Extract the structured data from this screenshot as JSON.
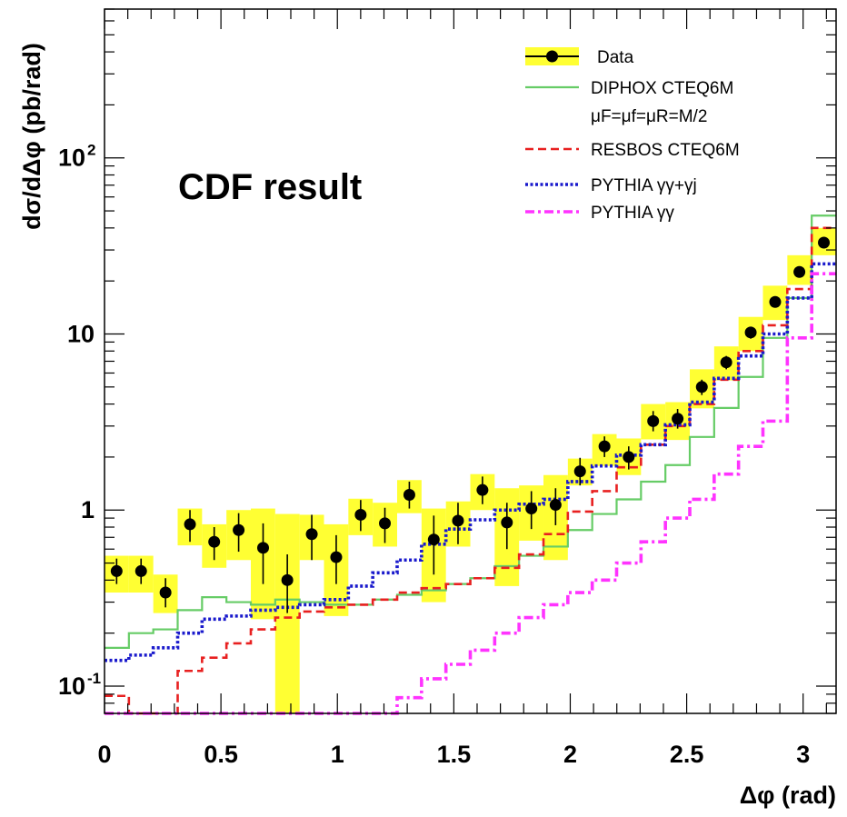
{
  "chart_data": {
    "type": "line",
    "title": "",
    "xlabel": "Δφ (rad)",
    "ylabel": "dσ/dΔφ (pb/rad)",
    "xlim": [
      0,
      3.1416
    ],
    "ylim": [
      0.07,
      700
    ],
    "yscale": "log",
    "grid": false,
    "legend_position": "top-right",
    "annotation": "CDF result",
    "x_ticks": [
      {
        "value": 0,
        "label": "0"
      },
      {
        "value": 0.5,
        "label": "0.5"
      },
      {
        "value": 1,
        "label": "1"
      },
      {
        "value": 1.5,
        "label": "1.5"
      },
      {
        "value": 2,
        "label": "2"
      },
      {
        "value": 2.5,
        "label": "2.5"
      },
      {
        "value": 3,
        "label": "3"
      }
    ],
    "y_ticks": [
      {
        "value": 0.1,
        "base": "10",
        "exp": "-1"
      },
      {
        "value": 1,
        "base": "1",
        "exp": ""
      },
      {
        "value": 10,
        "base": "10",
        "exp": ""
      },
      {
        "value": 100,
        "base": "10",
        "exp": "2"
      }
    ],
    "bin_edges": [
      0,
      0.1047,
      0.2094,
      0.3142,
      0.4189,
      0.5236,
      0.6283,
      0.733,
      0.8378,
      0.9425,
      1.0472,
      1.1519,
      1.2566,
      1.3614,
      1.4661,
      1.5708,
      1.6755,
      1.7802,
      1.885,
      1.9897,
      2.0944,
      2.1991,
      2.3038,
      2.4086,
      2.5133,
      2.618,
      2.7227,
      2.8274,
      2.9322,
      3.0369,
      3.1416
    ],
    "series": [
      {
        "name": "Data",
        "style": "points",
        "color": "#000000",
        "band_color": "#ffff33",
        "x": [
          0.052,
          0.157,
          0.262,
          0.367,
          0.471,
          0.576,
          0.681,
          0.785,
          0.89,
          0.995,
          1.1,
          1.204,
          1.309,
          1.414,
          1.518,
          1.623,
          1.728,
          1.833,
          1.937,
          2.042,
          2.147,
          2.251,
          2.356,
          2.461,
          2.565,
          2.67,
          2.775,
          2.88,
          2.984,
          3.089
        ],
        "values": [
          0.45,
          0.45,
          0.34,
          0.83,
          0.66,
          0.77,
          0.61,
          0.4,
          0.73,
          0.54,
          0.94,
          0.84,
          1.22,
          0.68,
          0.87,
          1.3,
          0.85,
          1.02,
          1.07,
          1.66,
          2.3,
          2.0,
          3.2,
          3.3,
          5.0,
          6.9,
          10.2,
          15.2,
          22.5,
          33.0
        ],
        "err_lo": [
          0.38,
          0.38,
          0.28,
          0.66,
          0.52,
          0.58,
          0.38,
          0.26,
          0.52,
          0.38,
          0.76,
          0.65,
          1.02,
          0.43,
          0.64,
          1.08,
          0.6,
          0.78,
          0.82,
          1.38,
          2.0,
          1.7,
          2.8,
          2.9,
          4.5,
          6.3,
          9.4,
          14.2,
          21.2,
          31.2
        ],
        "err_hi": [
          0.53,
          0.53,
          0.41,
          1.0,
          0.8,
          0.96,
          0.84,
          0.56,
          0.94,
          0.72,
          1.14,
          1.03,
          1.45,
          0.93,
          1.1,
          1.55,
          1.1,
          1.28,
          1.33,
          1.98,
          2.62,
          2.3,
          3.65,
          3.75,
          5.5,
          7.5,
          11.0,
          16.3,
          23.8,
          34.8
        ],
        "band_lo": [
          0.34,
          0.34,
          0.26,
          0.63,
          0.47,
          0.52,
          0.24,
          0.04,
          0.52,
          0.25,
          0.72,
          0.62,
          0.96,
          0.3,
          0.62,
          1.0,
          0.37,
          0.67,
          0.52,
          1.38,
          1.78,
          1.58,
          2.52,
          2.5,
          3.78,
          5.45,
          8.0,
          12.0,
          19.0,
          28.0
        ],
        "band_hi": [
          0.55,
          0.55,
          0.43,
          1.02,
          0.83,
          1.0,
          1.02,
          0.95,
          0.94,
          0.83,
          1.16,
          1.1,
          1.48,
          1.02,
          1.12,
          1.6,
          1.33,
          1.38,
          1.58,
          1.96,
          2.7,
          2.55,
          4.0,
          4.1,
          6.3,
          8.5,
          12.5,
          18.8,
          28.0,
          40.0
        ]
      },
      {
        "name": "DIPHOX CTEQ6M",
        "name_extra": "μF=μf=μR=M/2",
        "style": "solid",
        "color": "#66cc66",
        "values": [
          0.165,
          0.2,
          0.21,
          0.27,
          0.32,
          0.3,
          0.29,
          0.31,
          0.3,
          0.29,
          0.29,
          0.31,
          0.33,
          0.35,
          0.38,
          0.41,
          0.48,
          0.55,
          0.62,
          0.77,
          0.95,
          1.15,
          1.45,
          1.8,
          2.6,
          3.8,
          5.7,
          9.5,
          16.0,
          47.0
        ]
      },
      {
        "name": "RESBOS CTEQ6M",
        "style": "dashed",
        "color": "#e82020",
        "values": [
          0.088,
          0.07,
          0.07,
          0.122,
          0.145,
          0.175,
          0.21,
          0.245,
          0.265,
          0.28,
          0.29,
          0.31,
          0.34,
          0.36,
          0.38,
          0.41,
          0.47,
          0.56,
          0.73,
          0.98,
          1.28,
          1.75,
          2.35,
          3.0,
          4.0,
          5.5,
          8.0,
          11.2,
          18.0,
          40.0
        ]
      },
      {
        "name": "PYTHIA γγ+γj",
        "style": "dotted",
        "color": "#1a1acc",
        "values": [
          0.14,
          0.15,
          0.165,
          0.2,
          0.24,
          0.25,
          0.27,
          0.28,
          0.29,
          0.31,
          0.37,
          0.44,
          0.52,
          0.64,
          0.78,
          0.88,
          1.0,
          1.08,
          1.15,
          1.45,
          1.78,
          2.05,
          2.35,
          3.05,
          4.1,
          5.6,
          7.5,
          10.0,
          16.0,
          25.0
        ]
      },
      {
        "name": "PYTHIA γγ",
        "style": "dashdot",
        "color": "#ff33ff",
        "values": [
          0.07,
          0.07,
          0.07,
          0.07,
          0.07,
          0.07,
          0.07,
          0.07,
          0.07,
          0.07,
          0.07,
          0.07,
          0.086,
          0.11,
          0.133,
          0.16,
          0.2,
          0.245,
          0.29,
          0.34,
          0.4,
          0.5,
          0.66,
          0.9,
          1.15,
          1.6,
          2.3,
          3.2,
          9.5,
          22.0
        ]
      }
    ]
  }
}
